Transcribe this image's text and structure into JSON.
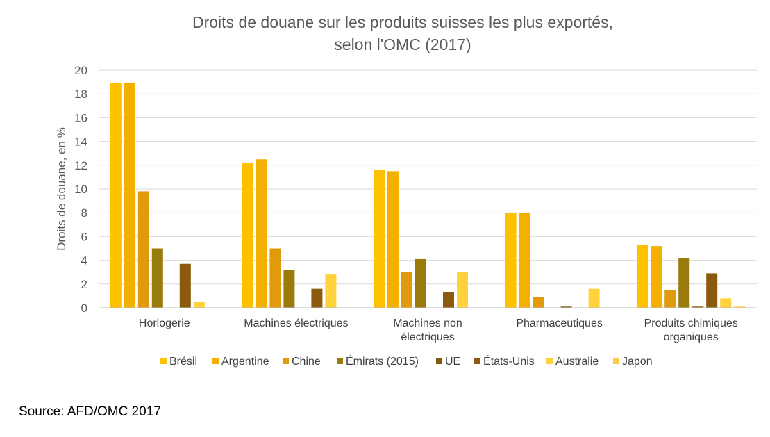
{
  "chart_data": {
    "type": "bar",
    "title": "Droits de douane sur les produits suisses les plus exportés,",
    "subtitle": "selon l'OMC (2017)",
    "xlabel": "",
    "ylabel": "Droits de douane, en %",
    "ylim": [
      0,
      20
    ],
    "yticks": [
      "0",
      "2",
      "4",
      "6",
      "8",
      "10",
      "12",
      "14",
      "16",
      "18",
      "20"
    ],
    "grid": true,
    "legend_position": "bottom",
    "categories": [
      [
        "Horlogerie"
      ],
      [
        "Machines électriques"
      ],
      [
        "Machines non",
        "électriques"
      ],
      [
        "Pharmaceutiques"
      ],
      [
        "Produits chimiques",
        "organiques"
      ]
    ],
    "series": [
      {
        "name": "Brésil",
        "color": "#FFC000",
        "values": [
          18.9,
          12.2,
          11.6,
          8.0,
          5.3
        ]
      },
      {
        "name": "Argentine",
        "color": "#F4B000",
        "values": [
          18.9,
          12.5,
          11.5,
          8.0,
          5.2
        ]
      },
      {
        "name": "Chine",
        "color": "#E09A0C",
        "values": [
          9.8,
          5.0,
          3.0,
          0.9,
          1.5
        ]
      },
      {
        "name": "Émirats (2015)",
        "color": "#9A7A0A",
        "values": [
          5.0,
          3.2,
          4.1,
          0,
          4.2
        ]
      },
      {
        "name": "UE",
        "color": "#7F5A10",
        "values": [
          0,
          0,
          0,
          0.1,
          0.1
        ]
      },
      {
        "name": "États-Unis",
        "color": "#8B5A0C",
        "values": [
          3.7,
          1.6,
          1.3,
          0,
          2.9
        ]
      },
      {
        "name": "Australie",
        "color": "#FFD23C",
        "values": [
          0.5,
          2.8,
          3.0,
          1.6,
          0.8
        ]
      },
      {
        "name": "Japon",
        "color": "#FFCB45",
        "values": [
          0,
          0,
          0,
          0,
          0.1
        ]
      }
    ]
  },
  "footer": {
    "source": "Source: AFD/OMC 2017"
  }
}
